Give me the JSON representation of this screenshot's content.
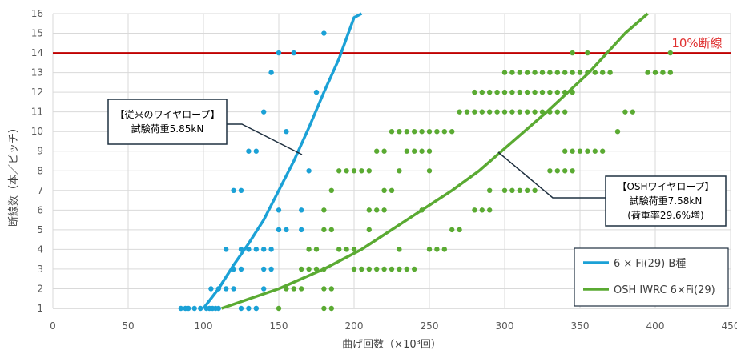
{
  "chart_data": {
    "type": "scatter",
    "title": "",
    "xlabel": "曲げ回数（×10³回）",
    "ylabel": "断線数（本／ピッチ）",
    "xlim": [
      0,
      450
    ],
    "ylim": [
      1,
      16
    ],
    "xticks": [
      "0",
      "50",
      "100",
      "150",
      "200",
      "250",
      "300",
      "350",
      "400",
      "450"
    ],
    "yticks": [
      "1",
      "2",
      "3",
      "4",
      "5",
      "6",
      "7",
      "8",
      "9",
      "10",
      "11",
      "12",
      "13",
      "14",
      "15",
      "16"
    ],
    "grid": true,
    "reference_line": {
      "y": 14,
      "label": "10%断線",
      "color": "#c00000"
    },
    "series": [
      {
        "name": "6 × Fi(29) B種",
        "color": "#1ba1d6",
        "fit_curve": [
          [
            100,
            1
          ],
          [
            110,
            2
          ],
          [
            120,
            3.2
          ],
          [
            130,
            4.3
          ],
          [
            140,
            5.5
          ],
          [
            150,
            7
          ],
          [
            160,
            8.5
          ],
          [
            170,
            10.2
          ],
          [
            180,
            12
          ],
          [
            190,
            13.7
          ],
          [
            200,
            15.8
          ],
          [
            205,
            16
          ]
        ],
        "points": [
          [
            85,
            1
          ],
          [
            88,
            1
          ],
          [
            90,
            1
          ],
          [
            94,
            1
          ],
          [
            98,
            1
          ],
          [
            102,
            1
          ],
          [
            104,
            1
          ],
          [
            106,
            1
          ],
          [
            108,
            1
          ],
          [
            110,
            1
          ],
          [
            125,
            1
          ],
          [
            130,
            1
          ],
          [
            135,
            1
          ],
          [
            135,
            1
          ],
          [
            105,
            2
          ],
          [
            110,
            2
          ],
          [
            115,
            2
          ],
          [
            120,
            2
          ],
          [
            140,
            2
          ],
          [
            120,
            3
          ],
          [
            125,
            3
          ],
          [
            140,
            3
          ],
          [
            115,
            4
          ],
          [
            125,
            4
          ],
          [
            130,
            4
          ],
          [
            135,
            4
          ],
          [
            140,
            4
          ],
          [
            145,
            4
          ],
          [
            145,
            3
          ],
          [
            150,
            5
          ],
          [
            155,
            5
          ],
          [
            165,
            5
          ],
          [
            150,
            6
          ],
          [
            165,
            6
          ],
          [
            120,
            7
          ],
          [
            125,
            7
          ],
          [
            170,
            8
          ],
          [
            130,
            9
          ],
          [
            135,
            9
          ],
          [
            155,
            10
          ],
          [
            140,
            11
          ],
          [
            175,
            12
          ],
          [
            145,
            13
          ],
          [
            150,
            14
          ],
          [
            160,
            14
          ],
          [
            180,
            15
          ]
        ]
      },
      {
        "name": "OSH IWRC 6×Fi(29)",
        "color": "#5aaa32",
        "fit_curve": [
          [
            112,
            1
          ],
          [
            150,
            2
          ],
          [
            180,
            3
          ],
          [
            205,
            4
          ],
          [
            225,
            5
          ],
          [
            245,
            6
          ],
          [
            265,
            7
          ],
          [
            283,
            8
          ],
          [
            298,
            9
          ],
          [
            313,
            10
          ],
          [
            328,
            11
          ],
          [
            342,
            12
          ],
          [
            356,
            13
          ],
          [
            368,
            14
          ],
          [
            380,
            15
          ],
          [
            395,
            16
          ]
        ],
        "points": [
          [
            150,
            1
          ],
          [
            180,
            1
          ],
          [
            185,
            1
          ],
          [
            155,
            2
          ],
          [
            160,
            2
          ],
          [
            165,
            2
          ],
          [
            180,
            2
          ],
          [
            185,
            2
          ],
          [
            165,
            3
          ],
          [
            170,
            3
          ],
          [
            175,
            3
          ],
          [
            180,
            3
          ],
          [
            200,
            3
          ],
          [
            205,
            3
          ],
          [
            210,
            3
          ],
          [
            215,
            3
          ],
          [
            220,
            3
          ],
          [
            225,
            3
          ],
          [
            230,
            3
          ],
          [
            235,
            3
          ],
          [
            240,
            3
          ],
          [
            170,
            4
          ],
          [
            175,
            4
          ],
          [
            190,
            4
          ],
          [
            195,
            4
          ],
          [
            200,
            4
          ],
          [
            230,
            4
          ],
          [
            250,
            4
          ],
          [
            255,
            4
          ],
          [
            260,
            4
          ],
          [
            180,
            5
          ],
          [
            185,
            5
          ],
          [
            210,
            5
          ],
          [
            265,
            5
          ],
          [
            270,
            5
          ],
          [
            180,
            6
          ],
          [
            210,
            6
          ],
          [
            215,
            6
          ],
          [
            220,
            6
          ],
          [
            245,
            6
          ],
          [
            280,
            6
          ],
          [
            285,
            6
          ],
          [
            290,
            6
          ],
          [
            185,
            7
          ],
          [
            220,
            7
          ],
          [
            225,
            7
          ],
          [
            290,
            7
          ],
          [
            300,
            7
          ],
          [
            305,
            7
          ],
          [
            310,
            7
          ],
          [
            315,
            7
          ],
          [
            320,
            7
          ],
          [
            190,
            8
          ],
          [
            195,
            8
          ],
          [
            200,
            8
          ],
          [
            205,
            8
          ],
          [
            210,
            8
          ],
          [
            230,
            8
          ],
          [
            250,
            8
          ],
          [
            330,
            8
          ],
          [
            335,
            8
          ],
          [
            340,
            8
          ],
          [
            345,
            8
          ],
          [
            215,
            9
          ],
          [
            220,
            9
          ],
          [
            235,
            9
          ],
          [
            240,
            9
          ],
          [
            245,
            9
          ],
          [
            250,
            9
          ],
          [
            340,
            9
          ],
          [
            345,
            9
          ],
          [
            350,
            9
          ],
          [
            355,
            9
          ],
          [
            360,
            9
          ],
          [
            365,
            9
          ],
          [
            225,
            10
          ],
          [
            230,
            10
          ],
          [
            235,
            10
          ],
          [
            240,
            10
          ],
          [
            245,
            10
          ],
          [
            250,
            10
          ],
          [
            255,
            10
          ],
          [
            260,
            10
          ],
          [
            265,
            10
          ],
          [
            375,
            10
          ],
          [
            270,
            11
          ],
          [
            275,
            11
          ],
          [
            280,
            11
          ],
          [
            285,
            11
          ],
          [
            290,
            11
          ],
          [
            295,
            11
          ],
          [
            300,
            11
          ],
          [
            305,
            11
          ],
          [
            310,
            11
          ],
          [
            315,
            11
          ],
          [
            320,
            11
          ],
          [
            325,
            11
          ],
          [
            330,
            11
          ],
          [
            335,
            11
          ],
          [
            340,
            11
          ],
          [
            380,
            11
          ],
          [
            385,
            11
          ],
          [
            280,
            12
          ],
          [
            285,
            12
          ],
          [
            290,
            12
          ],
          [
            295,
            12
          ],
          [
            300,
            12
          ],
          [
            305,
            12
          ],
          [
            310,
            12
          ],
          [
            315,
            12
          ],
          [
            320,
            12
          ],
          [
            325,
            12
          ],
          [
            330,
            12
          ],
          [
            335,
            12
          ],
          [
            340,
            12
          ],
          [
            345,
            12
          ],
          [
            300,
            13
          ],
          [
            305,
            13
          ],
          [
            310,
            13
          ],
          [
            315,
            13
          ],
          [
            320,
            13
          ],
          [
            325,
            13
          ],
          [
            330,
            13
          ],
          [
            335,
            13
          ],
          [
            340,
            13
          ],
          [
            345,
            13
          ],
          [
            350,
            13
          ],
          [
            355,
            13
          ],
          [
            360,
            13
          ],
          [
            365,
            13
          ],
          [
            370,
            13
          ],
          [
            395,
            13
          ],
          [
            400,
            13
          ],
          [
            405,
            13
          ],
          [
            410,
            13
          ],
          [
            345,
            14
          ],
          [
            355,
            14
          ],
          [
            410,
            14
          ]
        ]
      }
    ],
    "annotations": [
      {
        "lines": [
          "【従来のワイヤロープ】",
          "試験荷重5.85kN"
        ]
      },
      {
        "lines": [
          "【OSHワイヤロープ】",
          "試験荷重7.58kN",
          "(荷重率29.6%増)"
        ]
      }
    ],
    "legend": {
      "position": "bottom-right"
    }
  }
}
